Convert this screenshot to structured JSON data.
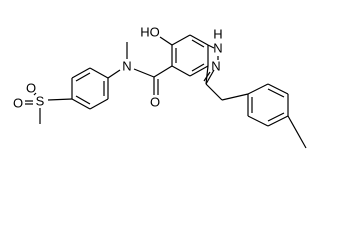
{
  "atoms": {
    "hydroxyl": "HO",
    "indazole_h": "H",
    "indazole_n1": "N",
    "indazole_n2": "N",
    "amide_n": "N",
    "carbonyl_o": "O",
    "sulfur": "S",
    "sulfonyl_o1": "O",
    "sulfonyl_o2": "O"
  }
}
